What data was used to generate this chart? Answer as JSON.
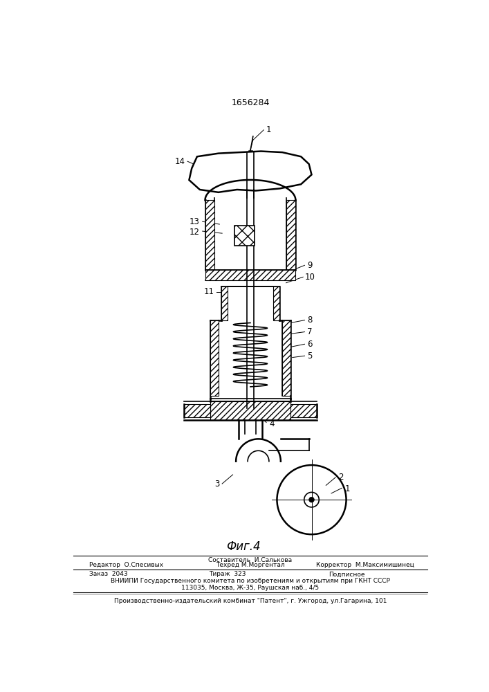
{
  "patent_number": "1656284",
  "fig_label": "Фиг.4",
  "bg_color": "#ffffff",
  "line_color": "#000000",
  "footer_line1_center_top": "Составитель  И.Салькова",
  "footer_line1_left": "Редактор  О.Спесивых",
  "footer_line1_center": "Техред М.Моргентал",
  "footer_line1_right": "Корректор  М.Максимишинец",
  "footer_line2_left": "Заказ  2043",
  "footer_line2_center": "Тираж  323",
  "footer_line2_right": "Подписное",
  "footer_line3": "ВНИИПИ Государственного комитета по изобретениям и открытиям при ГКНТ СССР",
  "footer_line4": "113035, Москва, Ж-35, Раушская наб., 4/5",
  "footer_line5": "Производственно-издательский комбинат \"Патент\", г. Ужгород, ул.Гагарина, 101"
}
